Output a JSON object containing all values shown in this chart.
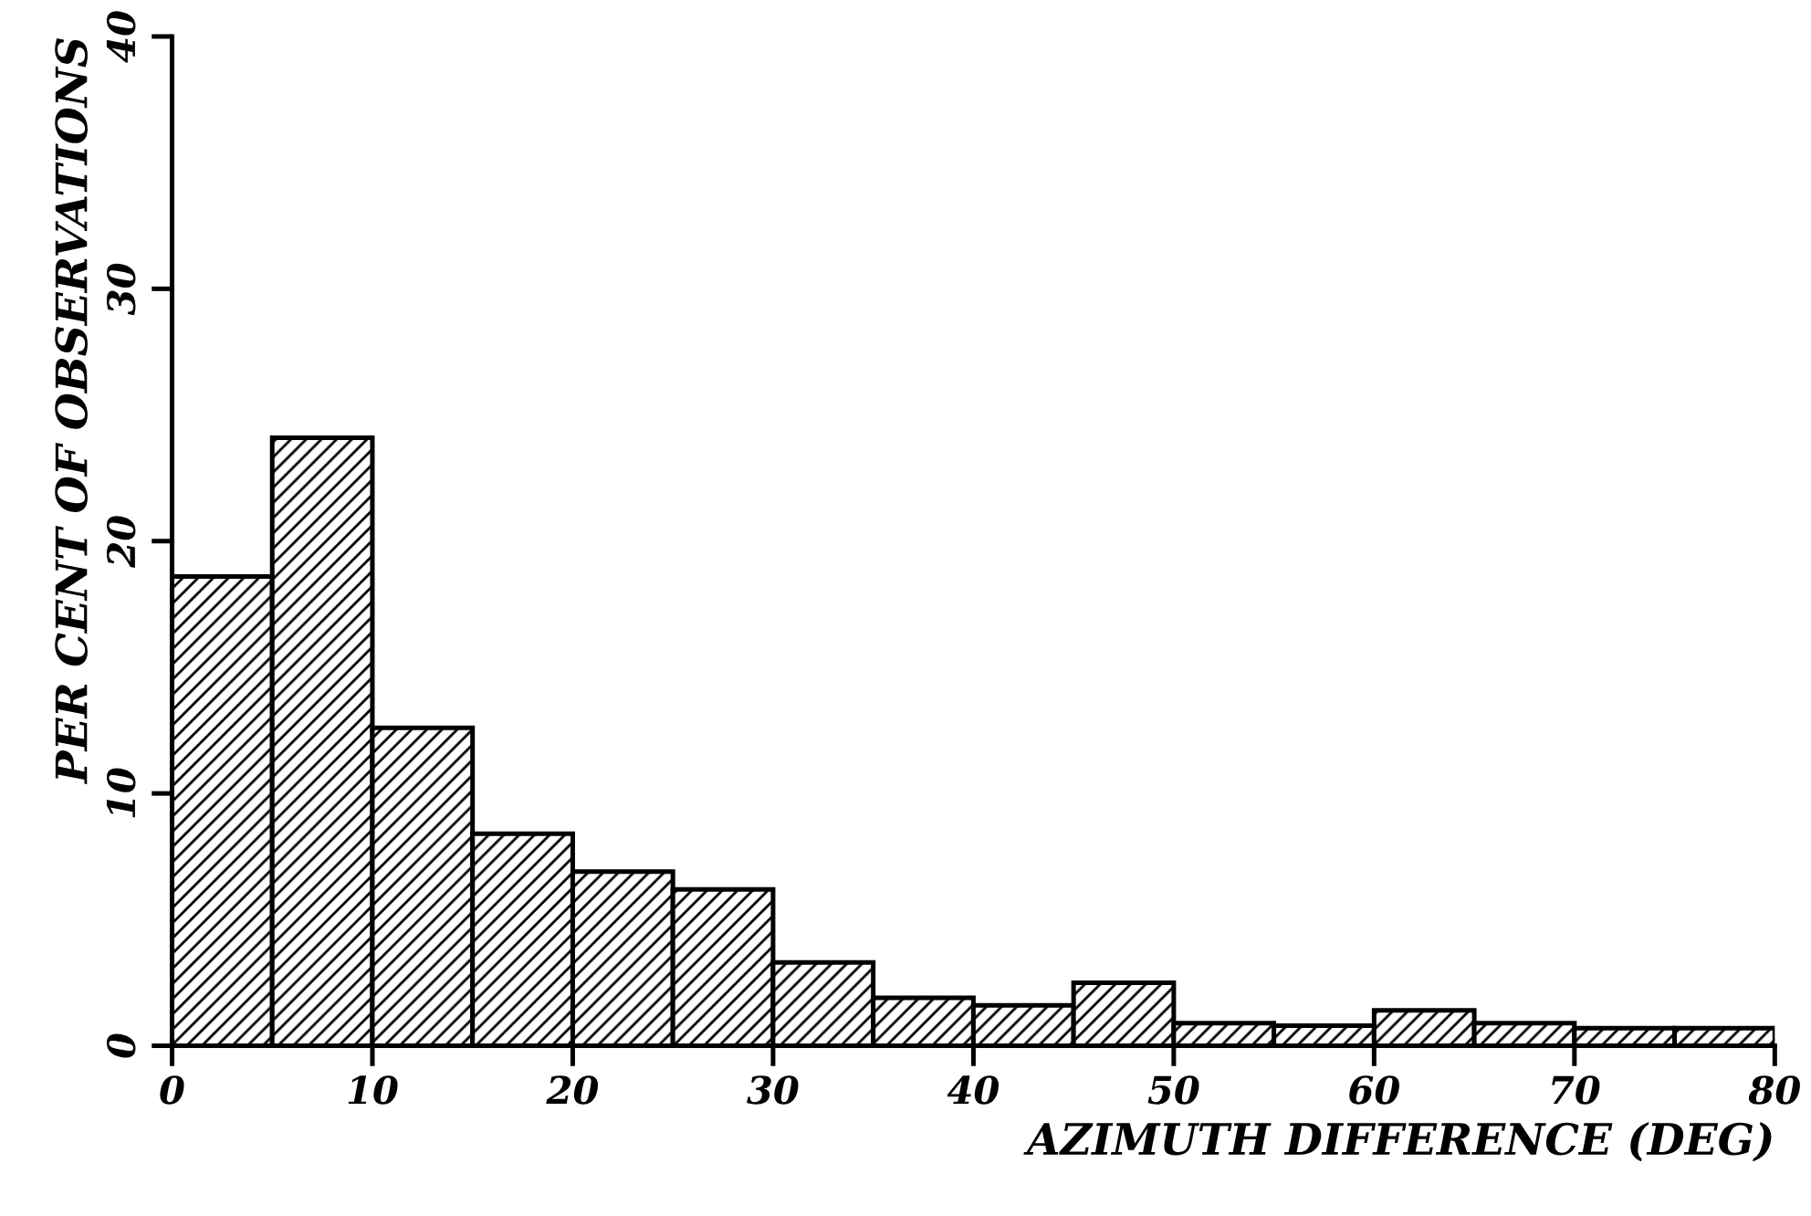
{
  "chart_data": {
    "type": "histogram",
    "xlabel": "AZIMUTH DIFFERENCE (DEG)",
    "ylabel": "PER CENT OF OBSERVATIONS",
    "bins": [
      0,
      5,
      10,
      15,
      20,
      25,
      30,
      35,
      40,
      45,
      50,
      55,
      60,
      65,
      70,
      75,
      80
    ],
    "values": [
      18.6,
      24.1,
      12.6,
      8.4,
      6.9,
      6.2,
      3.3,
      1.9,
      1.6,
      2.5,
      0.9,
      0.8,
      1.4,
      0.9,
      0.7,
      0.7
    ],
    "color": "#000000",
    "xlim": [
      0,
      80
    ],
    "xticks": [
      0,
      10,
      20,
      30,
      40,
      50,
      60,
      70,
      80
    ],
    "ylim": [
      0,
      40
    ],
    "yticks": [
      0,
      10,
      20,
      30,
      40
    ],
    "grid": false
  }
}
